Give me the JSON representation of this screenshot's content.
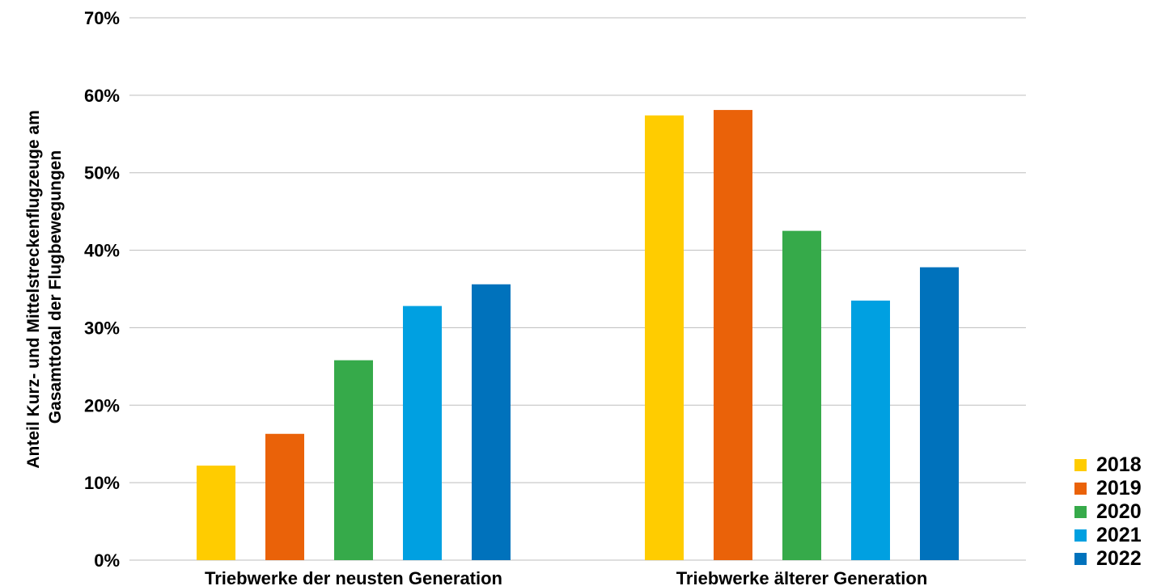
{
  "chart_data": {
    "type": "bar",
    "title": "",
    "ylabel_lines": [
      "Anteil Kurz- und Mittelstreckenflugzeuge am",
      "Gasamttotal der Flugbewegungen"
    ],
    "xlabel": "",
    "categories": [
      "Triebwerke der neusten Generation",
      "Triebwerke älterer Generation"
    ],
    "series": [
      {
        "name": "2018",
        "color": "#FFCC00",
        "values": [
          12.2,
          57.4
        ]
      },
      {
        "name": "2019",
        "color": "#EA6209",
        "values": [
          16.3,
          58.1
        ]
      },
      {
        "name": "2020",
        "color": "#36AA4A",
        "values": [
          25.8,
          42.5
        ]
      },
      {
        "name": "2021",
        "color": "#00A0E1",
        "values": [
          32.8,
          33.5
        ]
      },
      {
        "name": "2022",
        "color": "#0072BC",
        "values": [
          35.6,
          37.8
        ]
      }
    ],
    "ylim": [
      0,
      70
    ],
    "yticks": [
      0,
      10,
      20,
      30,
      40,
      50,
      60,
      70
    ],
    "ytick_labels": [
      "0%",
      "10%",
      "20%",
      "30%",
      "40%",
      "50%",
      "60%",
      "70%"
    ],
    "grid": true,
    "legend_position": "bottom-right"
  }
}
